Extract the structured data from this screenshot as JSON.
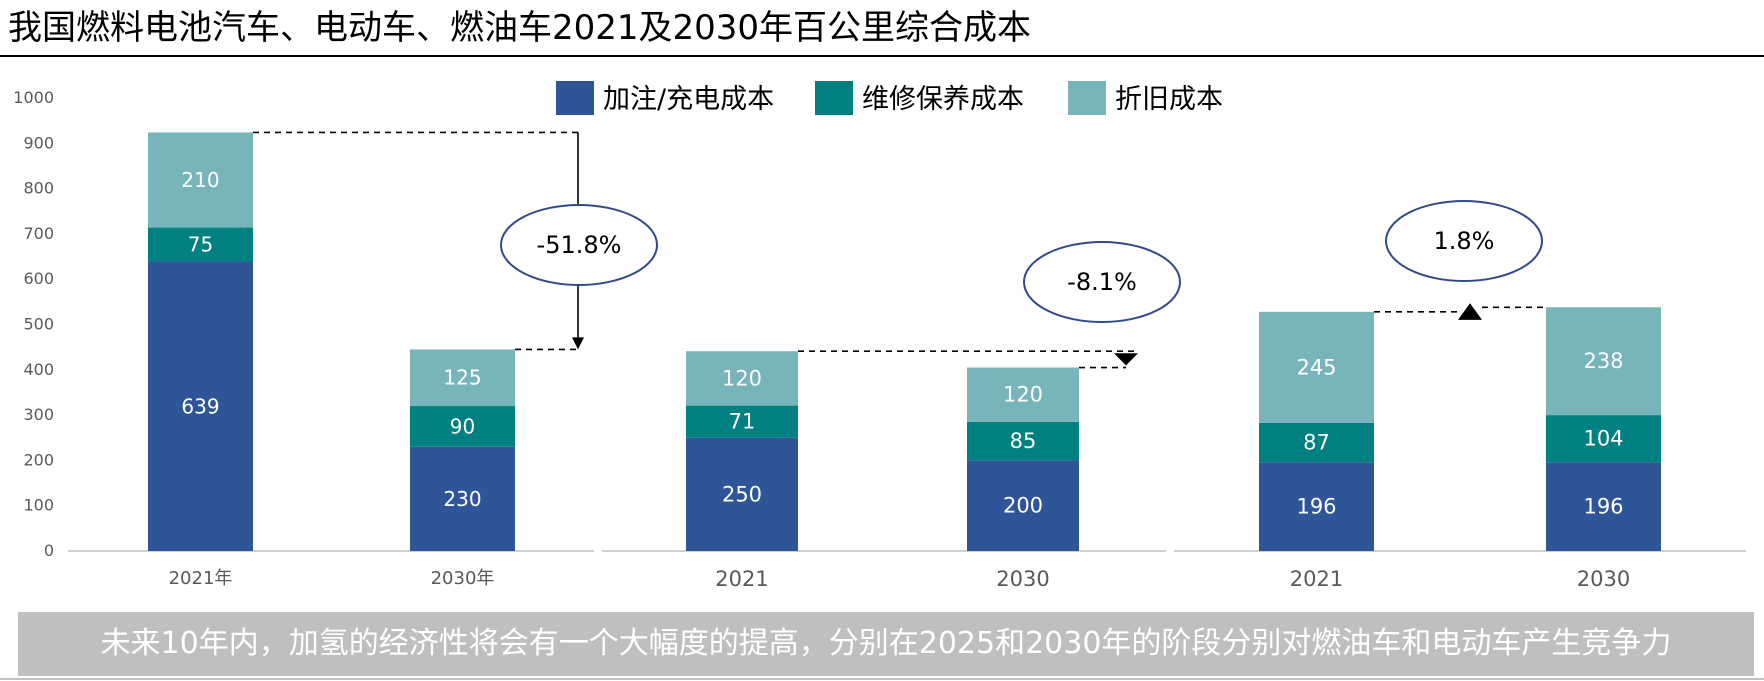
{
  "title": "我国燃料电池汽车、电动车、燃油车2021及2030年百公里综合成本",
  "footer": "未来10年内，加氢的经济性将会有一个大幅度的提高，分别在2025和2030年的阶段分别对燃油车和电动车产生竞争力",
  "colors": {
    "fuel": "#2e5597",
    "maintenance": "#008080",
    "depreciation": "#77b5bb",
    "ellipse": "#2e4a8c"
  },
  "chart_data": {
    "type": "bar",
    "stacked": true,
    "ylim": [
      0,
      1000
    ],
    "yticks": [
      "0",
      "100",
      "200",
      "300",
      "400",
      "500",
      "600",
      "700",
      "800",
      "900",
      "1000"
    ],
    "legend_position": "top",
    "series": [
      {
        "name": "加注/充电成本",
        "color": "#2e5597"
      },
      {
        "name": "维修保养成本",
        "color": "#008080"
      },
      {
        "name": "折旧成本",
        "color": "#77b5bb"
      }
    ],
    "groups": [
      {
        "bars": [
          {
            "label": "2021年",
            "values": [
              639,
              75,
              210
            ]
          },
          {
            "label": "2030年",
            "values": [
              230,
              90,
              125
            ]
          }
        ],
        "change": "-51.8%"
      },
      {
        "bars": [
          {
            "label": "2021",
            "values": [
              250,
              71,
              120
            ]
          },
          {
            "label": "2030",
            "values": [
              200,
              85,
              120
            ]
          }
        ],
        "change": "-8.1%"
      },
      {
        "bars": [
          {
            "label": "2021",
            "values": [
              196,
              87,
              245
            ]
          },
          {
            "label": "2030",
            "values": [
              196,
              104,
              238
            ]
          }
        ],
        "change": "1.8%"
      }
    ]
  }
}
